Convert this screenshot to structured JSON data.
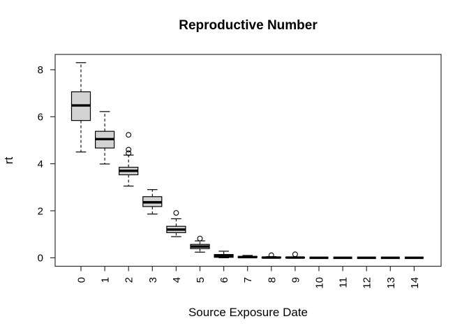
{
  "chart_data": {
    "type": "boxplot",
    "title": "Reproductive Number",
    "xlabel": "Source Exposure Date",
    "ylabel": "rt",
    "categories": [
      "0",
      "1",
      "2",
      "3",
      "4",
      "5",
      "6",
      "7",
      "8",
      "9",
      "10",
      "11",
      "12",
      "13",
      "14"
    ],
    "yticks": [
      0,
      2,
      4,
      6,
      8
    ],
    "ylim": [
      -0.36,
      8.65
    ],
    "grid": false,
    "legend": "none",
    "colors": {
      "box_fill": "#d3d3d3",
      "line": "#000000",
      "frame": "#2e2e2e",
      "background": "#ffffff"
    },
    "series": [
      {
        "category": "0",
        "whisker_low": 4.5,
        "q1": 5.84,
        "median": 6.48,
        "q3": 7.06,
        "whisker_high": 8.3,
        "outliers": []
      },
      {
        "category": "1",
        "whisker_low": 3.99,
        "q1": 4.67,
        "median": 5.05,
        "q3": 5.38,
        "whisker_high": 6.22,
        "outliers": []
      },
      {
        "category": "2",
        "whisker_low": 3.05,
        "q1": 3.53,
        "median": 3.7,
        "q3": 3.85,
        "whisker_high": 4.37,
        "outliers": [
          4.45,
          4.6,
          5.23
        ]
      },
      {
        "category": "3",
        "whisker_low": 1.86,
        "q1": 2.18,
        "median": 2.36,
        "q3": 2.6,
        "whisker_high": 2.9,
        "outliers": []
      },
      {
        "category": "4",
        "whisker_low": 0.9,
        "q1": 1.07,
        "median": 1.2,
        "q3": 1.34,
        "whisker_high": 1.66,
        "outliers": [
          1.91
        ]
      },
      {
        "category": "5",
        "whisker_low": 0.24,
        "q1": 0.39,
        "median": 0.48,
        "q3": 0.57,
        "whisker_high": 0.72,
        "outliers": [
          0.82
        ]
      },
      {
        "category": "6",
        "whisker_low": 0.0,
        "q1": 0.02,
        "median": 0.08,
        "q3": 0.14,
        "whisker_high": 0.28,
        "outliers": []
      },
      {
        "category": "7",
        "whisker_low": 0.0,
        "q1": 0.01,
        "median": 0.03,
        "q3": 0.06,
        "whisker_high": 0.1,
        "outliers": []
      },
      {
        "category": "8",
        "whisker_low": 0.0,
        "q1": 0.0,
        "median": 0.01,
        "q3": 0.03,
        "whisker_high": 0.05,
        "outliers": [
          0.11
        ]
      },
      {
        "category": "9",
        "whisker_low": 0.0,
        "q1": 0.0,
        "median": 0.01,
        "q3": 0.02,
        "whisker_high": 0.03,
        "outliers": [
          0.15
        ]
      },
      {
        "category": "10",
        "whisker_low": 0.0,
        "q1": 0.0,
        "median": 0.0,
        "q3": 0.0,
        "whisker_high": 0.0,
        "outliers": []
      },
      {
        "category": "11",
        "whisker_low": 0.0,
        "q1": 0.0,
        "median": 0.0,
        "q3": 0.0,
        "whisker_high": 0.0,
        "outliers": []
      },
      {
        "category": "12",
        "whisker_low": 0.0,
        "q1": 0.0,
        "median": 0.0,
        "q3": 0.0,
        "whisker_high": 0.0,
        "outliers": []
      },
      {
        "category": "13",
        "whisker_low": 0.0,
        "q1": 0.0,
        "median": 0.0,
        "q3": 0.0,
        "whisker_high": 0.0,
        "outliers": []
      },
      {
        "category": "14",
        "whisker_low": 0.0,
        "q1": 0.0,
        "median": 0.0,
        "q3": 0.0,
        "whisker_high": 0.0,
        "outliers": []
      }
    ]
  }
}
